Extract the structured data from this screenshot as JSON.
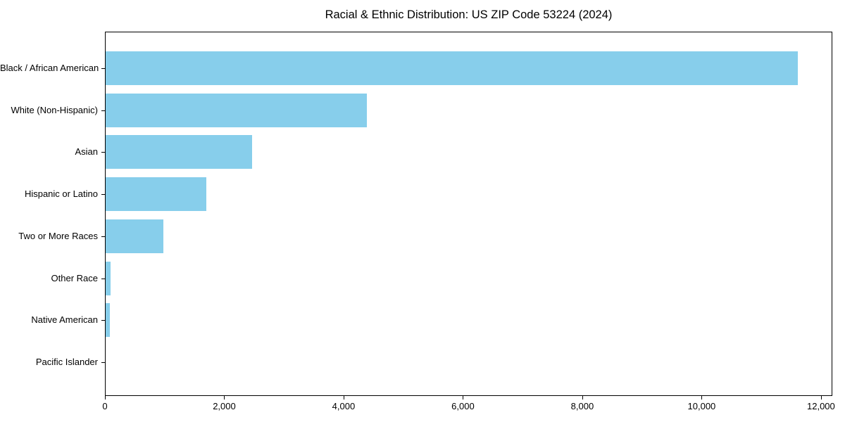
{
  "page": {
    "background": "#ffffff"
  },
  "chart_data": {
    "type": "bar",
    "orientation": "horizontal",
    "title": "Racial & Ethnic Distribution: US ZIP Code 53224 (2024)",
    "categories": [
      "Black / African American",
      "White (Non-Hispanic)",
      "Asian",
      "Hispanic or Latino",
      "Two or More Races",
      "Other Race",
      "Native American",
      "Pacific Islander"
    ],
    "values": [
      11600,
      4380,
      2460,
      1690,
      970,
      80,
      65,
      0
    ],
    "xlim": [
      0,
      12190
    ],
    "xticks": [
      0,
      2000,
      4000,
      6000,
      8000,
      10000,
      12000
    ],
    "xtick_labels": [
      "0",
      "2,000",
      "4,000",
      "6,000",
      "8,000",
      "10,000",
      "12,000"
    ],
    "ylabel": "",
    "xlabel": "",
    "bar_color": "#87CEEB",
    "axis_color": "#000000",
    "text_color": "#000000",
    "grid": false,
    "legend": "none"
  }
}
